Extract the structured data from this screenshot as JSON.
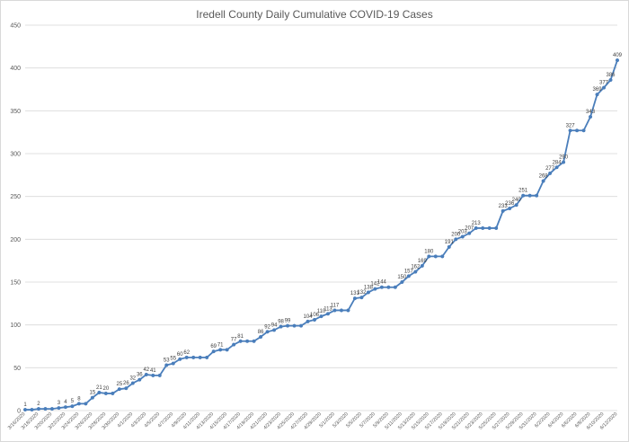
{
  "chart_data": {
    "type": "line",
    "title": "Iredell County Daily Cumulative COVID-19 Cases",
    "xlabel": "",
    "ylabel": "",
    "ylim": [
      0,
      450
    ],
    "y_ticks": [
      0,
      50,
      100,
      150,
      200,
      250,
      300,
      350,
      400,
      450
    ],
    "grid": "horizontal",
    "legend": "none",
    "line_color": "#4a7ebb",
    "x": [
      "3/16/2020",
      "3/17/2020",
      "3/18/2020",
      "3/19/2020",
      "3/20/2020",
      "3/21/2020",
      "3/22/2020",
      "3/23/2020",
      "3/24/2020",
      "3/25/2020",
      "3/26/2020",
      "3/27/2020",
      "3/28/2020",
      "3/29/2020",
      "3/30/2020",
      "3/31/2020",
      "4/1/2020",
      "4/2/2020",
      "4/3/2020",
      "4/4/2020",
      "4/5/2020",
      "4/6/2020",
      "4/7/2020",
      "4/8/2020",
      "4/9/2020",
      "4/10/2020",
      "4/11/2020",
      "4/12/2020",
      "4/13/2020",
      "4/14/2020",
      "4/15/2020",
      "4/16/2020",
      "4/17/2020",
      "4/18/2020",
      "4/19/2020",
      "4/20/2020",
      "4/21/2020",
      "4/22/2020",
      "4/23/2020",
      "4/24/2020",
      "4/25/2020",
      "4/26/2020",
      "4/27/2020",
      "4/28/2020",
      "4/29/2020",
      "4/30/2020",
      "5/1/2020",
      "5/2/2020",
      "5/3/2020",
      "5/4/2020",
      "5/5/2020",
      "5/6/2020",
      "5/7/2020",
      "5/8/2020",
      "5/9/2020",
      "5/10/2020",
      "5/11/2020",
      "5/12/2020",
      "5/13/2020",
      "5/14/2020",
      "5/15/2020",
      "5/16/2020",
      "5/17/2020",
      "5/18/2020",
      "5/19/2020",
      "5/20/2020",
      "5/21/2020",
      "5/22/2020",
      "5/23/2020",
      "5/24/2020",
      "5/25/2020",
      "5/26/2020",
      "5/27/2020",
      "5/28/2020",
      "5/29/2020",
      "5/30/2020",
      "5/31/2020",
      "6/1/2020",
      "6/2/2020",
      "6/3/2020",
      "6/4/2020",
      "6/5/2020",
      "6/6/2020",
      "6/7/2020",
      "6/8/2020",
      "6/9/2020",
      "6/10/2020",
      "6/11/2020",
      "6/12/2020"
    ],
    "x_tick_labels": [
      "3/16/2020",
      "3/18/2020",
      "3/20/2020",
      "3/22/2020",
      "3/24/2020",
      "3/26/2020",
      "3/28/2020",
      "3/30/2020",
      "4/1/2020",
      "4/3/2020",
      "4/5/2020",
      "4/7/2020",
      "4/9/2020",
      "4/11/2020",
      "4/13/2020",
      "4/15/2020",
      "4/17/2020",
      "4/19/2020",
      "4/21/2020",
      "4/23/2020",
      "4/25/2020",
      "4/27/2020",
      "4/29/2020",
      "5/1/2020",
      "5/3/2020",
      "5/5/2020",
      "5/7/2020",
      "5/9/2020",
      "5/11/2020",
      "5/13/2020",
      "5/15/2020",
      "5/17/2020",
      "5/19/2020",
      "5/21/2020",
      "5/23/2020",
      "5/25/2020",
      "5/27/2020",
      "5/29/2020",
      "5/31/2020",
      "6/2/2020",
      "6/4/2020",
      "6/6/2020",
      "6/8/2020",
      "6/10/2020",
      "6/12/2020"
    ],
    "series": [
      {
        "name": "",
        "values": [
          1,
          1,
          2,
          2,
          2,
          3,
          4,
          5,
          8,
          8,
          15,
          21,
          20,
          20,
          25,
          26,
          32,
          36,
          42,
          41,
          41,
          53,
          55,
          60,
          62,
          62,
          62,
          62,
          69,
          71,
          71,
          77,
          81,
          81,
          81,
          86,
          92,
          94,
          98,
          99,
          99,
          99,
          104,
          106,
          110,
          113,
          117,
          117,
          117,
          131,
          132,
          138,
          142,
          144,
          144,
          144,
          150,
          157,
          162,
          169,
          180,
          180,
          180,
          191,
          200,
          203,
          207,
          213,
          213,
          213,
          213,
          233,
          236,
          240,
          251,
          251,
          251,
          268,
          277,
          284,
          290,
          327,
          327,
          327,
          343,
          369,
          377,
          386,
          409
        ]
      }
    ],
    "data_labels": [
      1,
      2,
      3,
      4,
      5,
      8,
      15,
      21,
      25,
      26,
      32,
      36,
      42,
      53,
      55,
      60,
      62,
      69,
      71,
      77,
      81,
      86,
      92,
      94,
      98,
      99,
      104,
      106,
      110,
      113,
      117,
      131,
      132,
      138,
      142,
      144,
      144,
      144,
      150,
      157,
      162,
      169,
      180,
      180,
      180,
      191,
      200,
      203,
      207,
      213,
      213,
      213,
      213,
      233,
      236,
      240,
      251,
      251,
      251,
      268,
      277,
      284,
      290,
      327,
      327,
      327,
      343,
      369,
      377,
      386,
      409
    ]
  }
}
